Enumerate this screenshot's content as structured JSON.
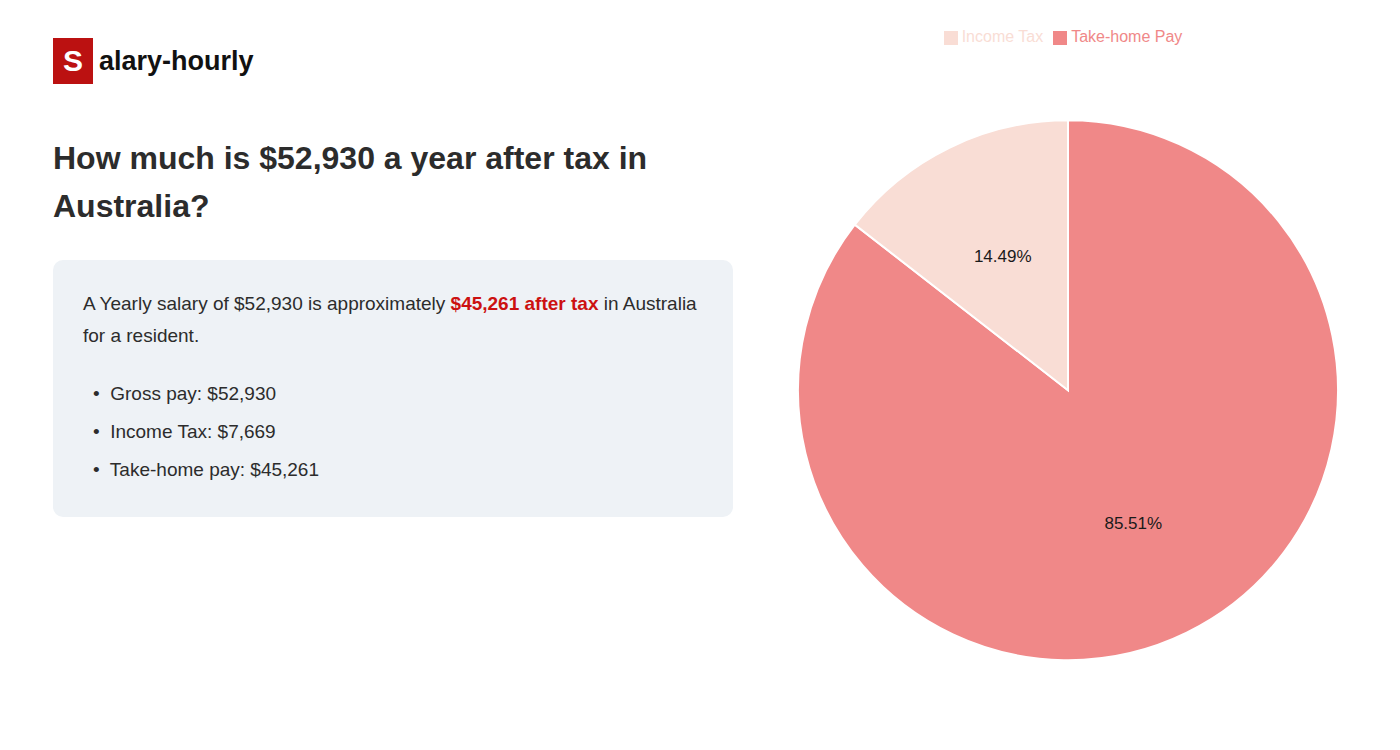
{
  "chart_data": {
    "type": "pie",
    "title": "How much is $52,930 a year after tax in Australia?",
    "annotations": [
      {
        "text": "S",
        "color": "#bb1111"
      },
      {
        "text": "alary-hourly"
      },
      {
        "text": "A Yearly salary of $52,930 is approximately"
      },
      {
        "text": "$45,261 after tax",
        "color": "#cc1111"
      },
      {
        "text": "in"
      },
      {
        "text": "Australia for a resident."
      },
      {
        "text": "•  Gross pay: $52,930"
      },
      {
        "text": "•  Income Tax: $7,669"
      },
      {
        "text": "•  Take-home pay: $45,261"
      }
    ],
    "categories": [
      "Take-home Pay",
      "Income Tax"
    ],
    "values": [
      85.51,
      14.49
    ],
    "value_labels": [
      "85.51%",
      "14.49%"
    ],
    "colors": [
      "#f08888",
      "#f9ddd5"
    ],
    "data_labels": true,
    "legend": "top"
  }
}
